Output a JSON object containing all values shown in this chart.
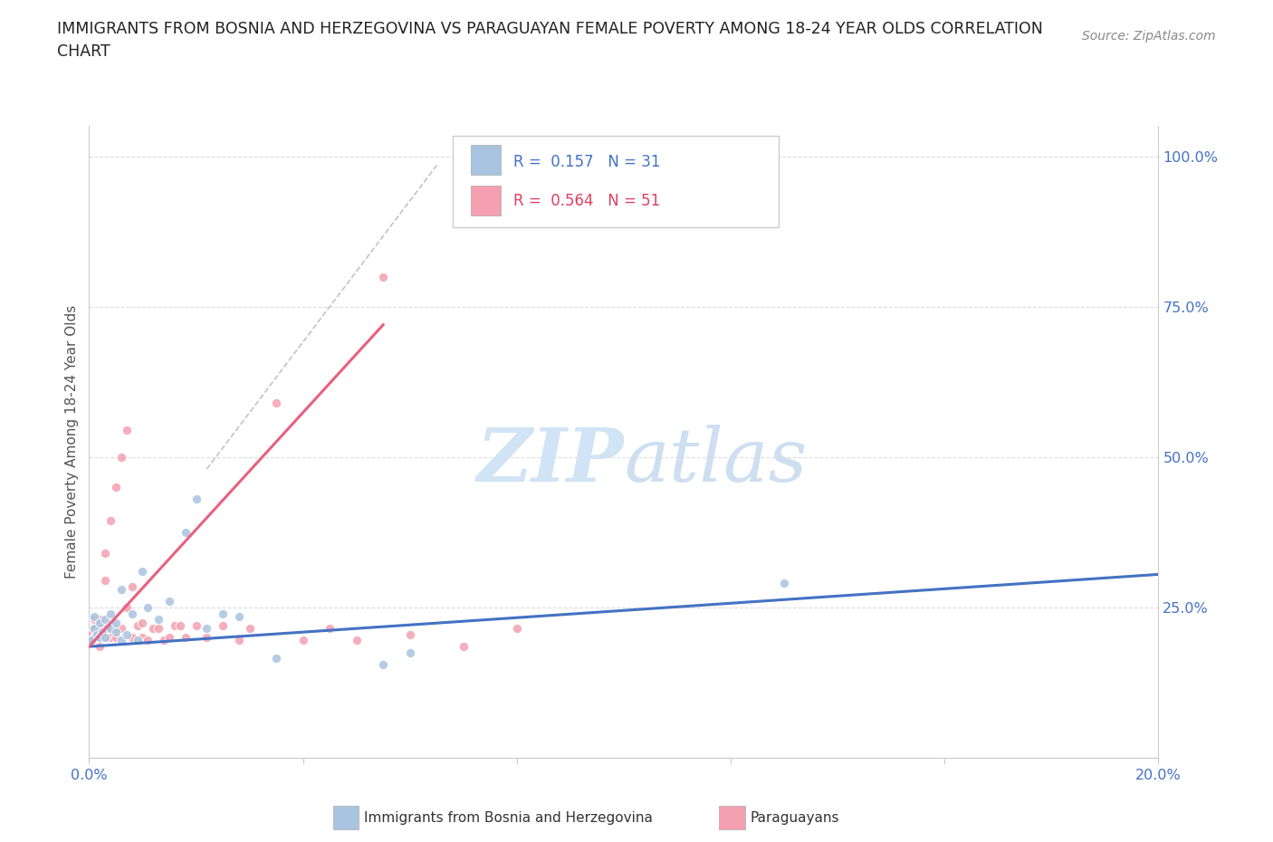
{
  "title_line1": "IMMIGRANTS FROM BOSNIA AND HERZEGOVINA VS PARAGUAYAN FEMALE POVERTY AMONG 18-24 YEAR OLDS CORRELATION",
  "title_line2": "CHART",
  "source": "Source: ZipAtlas.com",
  "ylabel": "Female Poverty Among 18-24 Year Olds",
  "x_min": 0.0,
  "x_max": 0.2,
  "y_min": 0.0,
  "y_max": 1.05,
  "y_ticks_right": [
    0.25,
    0.5,
    0.75,
    1.0
  ],
  "y_tick_labels_right": [
    "25.0%",
    "50.0%",
    "75.0%",
    "100.0%"
  ],
  "legend_entry1_r": "0.157",
  "legend_entry1_n": "31",
  "legend_entry2_r": "0.564",
  "legend_entry2_n": "51",
  "blue_color": "#A8C4E0",
  "pink_color": "#F4A0B0",
  "blue_line_color": "#4472C4",
  "pink_line_color": "#E86080",
  "blue_scatter_x": [
    0.0005,
    0.001,
    0.001,
    0.0015,
    0.002,
    0.002,
    0.0025,
    0.003,
    0.003,
    0.004,
    0.004,
    0.005,
    0.005,
    0.006,
    0.006,
    0.007,
    0.008,
    0.009,
    0.01,
    0.011,
    0.013,
    0.015,
    0.018,
    0.02,
    0.022,
    0.025,
    0.028,
    0.035,
    0.055,
    0.06,
    0.13
  ],
  "blue_scatter_y": [
    0.195,
    0.215,
    0.235,
    0.205,
    0.2,
    0.225,
    0.21,
    0.2,
    0.23,
    0.215,
    0.24,
    0.21,
    0.225,
    0.28,
    0.195,
    0.205,
    0.24,
    0.195,
    0.31,
    0.25,
    0.23,
    0.26,
    0.375,
    0.43,
    0.215,
    0.24,
    0.235,
    0.165,
    0.155,
    0.175,
    0.29
  ],
  "pink_scatter_x": [
    0.0003,
    0.0005,
    0.001,
    0.001,
    0.001,
    0.0015,
    0.002,
    0.002,
    0.002,
    0.0025,
    0.003,
    0.003,
    0.003,
    0.003,
    0.004,
    0.004,
    0.004,
    0.005,
    0.005,
    0.005,
    0.006,
    0.006,
    0.007,
    0.007,
    0.008,
    0.008,
    0.009,
    0.01,
    0.01,
    0.011,
    0.012,
    0.013,
    0.014,
    0.015,
    0.016,
    0.017,
    0.018,
    0.02,
    0.022,
    0.025,
    0.028,
    0.03,
    0.035,
    0.04,
    0.045,
    0.05,
    0.055,
    0.06,
    0.07,
    0.08,
    0.09
  ],
  "pink_scatter_y": [
    0.205,
    0.195,
    0.2,
    0.215,
    0.23,
    0.21,
    0.185,
    0.215,
    0.23,
    0.205,
    0.2,
    0.215,
    0.295,
    0.34,
    0.215,
    0.395,
    0.2,
    0.2,
    0.215,
    0.45,
    0.215,
    0.5,
    0.25,
    0.545,
    0.285,
    0.2,
    0.22,
    0.2,
    0.225,
    0.195,
    0.215,
    0.215,
    0.195,
    0.2,
    0.22,
    0.22,
    0.2,
    0.22,
    0.2,
    0.22,
    0.195,
    0.215,
    0.59,
    0.195,
    0.215,
    0.195,
    0.8,
    0.205,
    0.185,
    0.215,
    0.95
  ],
  "blue_trend_x": [
    0.0,
    0.2
  ],
  "blue_trend_y": [
    0.185,
    0.305
  ],
  "pink_trend_x": [
    0.0,
    0.055
  ],
  "pink_trend_y": [
    0.185,
    0.72
  ],
  "dashed_line_x": [
    0.022,
    0.065
  ],
  "dashed_line_y": [
    0.48,
    0.985
  ]
}
